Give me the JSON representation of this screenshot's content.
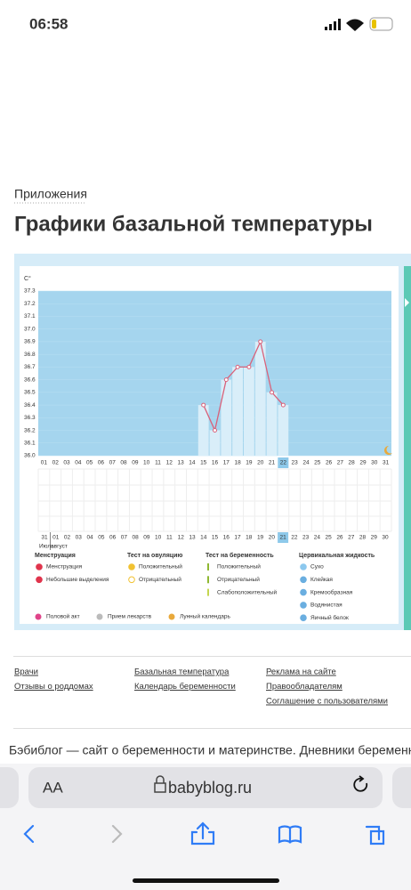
{
  "status_bar": {
    "time": "06:58"
  },
  "breadcrumb": "Приложения",
  "title": "Графики базальной температуры",
  "chart_data": {
    "type": "line",
    "y_label": "C°",
    "categories": [
      "01",
      "02",
      "03",
      "04",
      "05",
      "06",
      "07",
      "08",
      "09",
      "10",
      "11",
      "12",
      "13",
      "14",
      "15",
      "16",
      "17",
      "18",
      "19",
      "20",
      "21",
      "22",
      "23",
      "24",
      "25",
      "26",
      "27",
      "28",
      "29",
      "30",
      "31"
    ],
    "values": [
      null,
      null,
      null,
      null,
      null,
      null,
      null,
      null,
      null,
      null,
      null,
      null,
      null,
      null,
      36.4,
      36.2,
      36.6,
      36.7,
      36.7,
      36.9,
      36.5,
      36.4,
      null,
      null,
      null,
      null,
      null,
      null,
      null,
      null,
      null
    ],
    "ylim": [
      36.0,
      37.3
    ],
    "yticks": [
      {
        "value": 36.0,
        "label": "36.0"
      },
      36.1,
      36.2,
      36.3,
      36.4,
      36.5,
      36.6,
      36.7,
      36.8,
      36.9,
      {
        "value": 37.0,
        "label": "37.0"
      },
      37.1,
      37.2,
      37.3
    ],
    "color": "#d9627a",
    "fill": "#a5d5ee",
    "column_color": "#d9eef9",
    "highlight_index": 21,
    "grid": true
  },
  "calendar_row": {
    "days": [
      "31",
      "01",
      "02",
      "03",
      "04",
      "05",
      "06",
      "07",
      "08",
      "09",
      "10",
      "11",
      "12",
      "13",
      "14",
      "15",
      "16",
      "17",
      "18",
      "19",
      "20",
      "21",
      "22",
      "23",
      "24",
      "25",
      "26",
      "27",
      "28",
      "29",
      "30"
    ],
    "weekend": [
      false,
      false,
      false,
      true,
      true,
      false,
      false,
      false,
      false,
      false,
      true,
      true,
      false,
      false,
      false,
      false,
      false,
      true,
      true,
      false,
      false,
      false,
      false,
      false,
      true,
      true,
      false,
      false,
      false,
      false,
      false
    ],
    "highlight_index": 21,
    "months": [
      "Июль",
      "август"
    ]
  },
  "legend": {
    "groups": [
      {
        "title": "Менструация",
        "items": [
          "Менструация",
          "Небольшие выделения"
        ]
      },
      {
        "title": "Тест на овуляцию",
        "items": [
          "Положительный",
          "Отрицательный"
        ]
      },
      {
        "title": "Тест на беременность",
        "items": [
          "Положительный",
          "Отрицательный",
          "Слабоположительный"
        ]
      },
      {
        "title": "Цервикальная жидкость",
        "items": [
          "Сухо",
          "Клейкая",
          "Кремообразная",
          "Водянистая",
          "Яичный белок"
        ]
      }
    ],
    "extra": [
      "Половой акт",
      "Прием лекарств",
      "Лунный календарь"
    ]
  },
  "footer": {
    "columns": [
      [
        "Врачи",
        "Отзывы о роддомах"
      ],
      [
        "Базальная температура",
        "Календарь беременности"
      ],
      [
        "Реклама на сайте",
        "Правообладателям",
        "Соглашение с пользователями"
      ]
    ],
    "about": "Бэбиблог — сайт о беременности и материнстве. Дневники беременн"
  },
  "browser": {
    "text_size": "AA",
    "url": "babyblog.ru"
  }
}
